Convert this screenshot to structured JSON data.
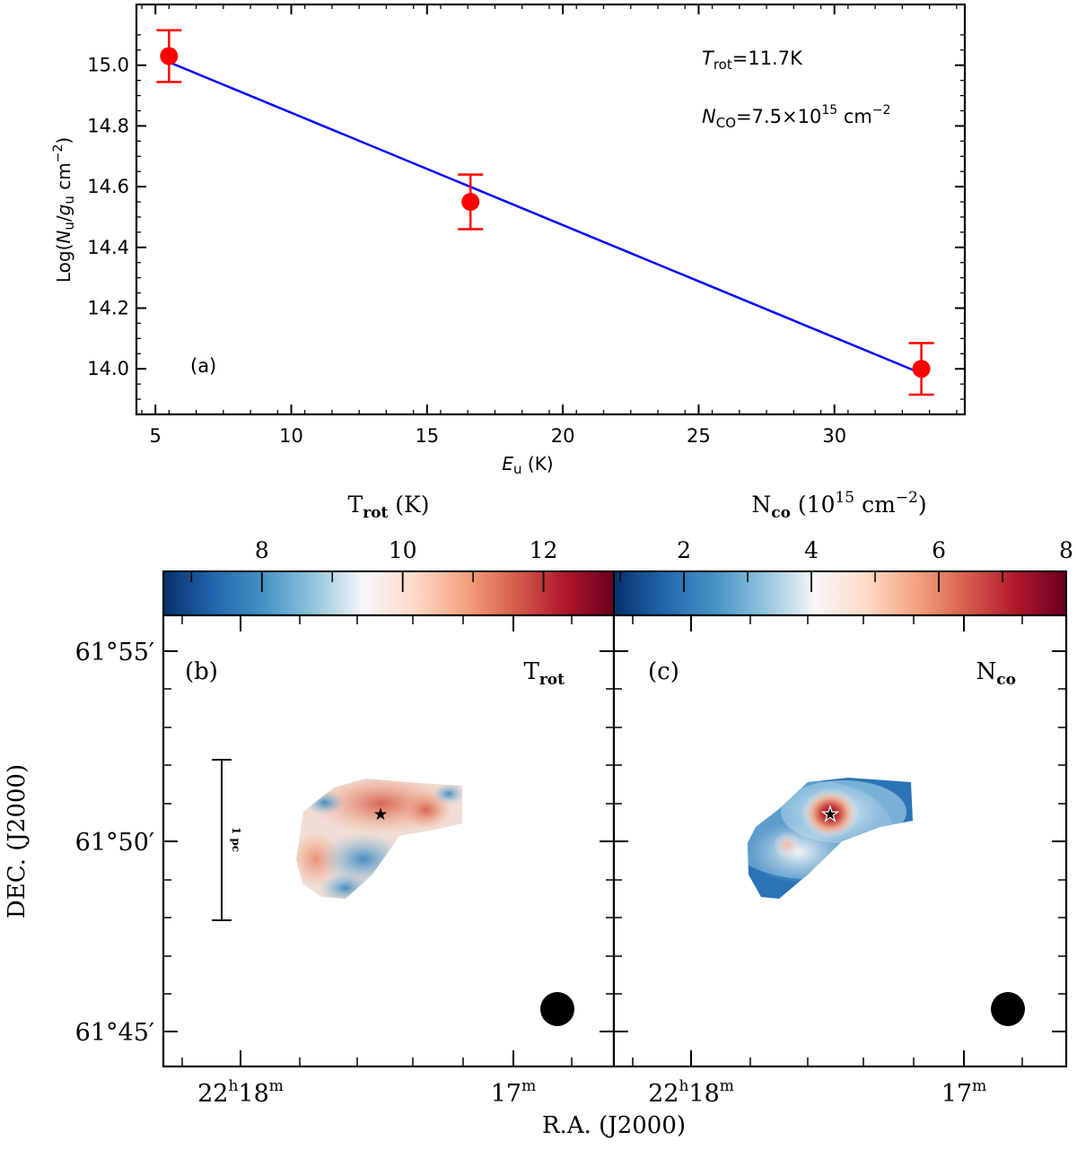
{
  "chart_data": [
    {
      "type": "scatter",
      "panel_label": "(a)",
      "xlabel_main": "E",
      "xlabel_sub": "u",
      "xlabel_unit": " (K)",
      "ylabel_text": "Log(N_u/g_u cm^-2)",
      "xlim": [
        4.3,
        34.8
      ],
      "ylim": [
        13.85,
        15.2
      ],
      "xticks": [
        5,
        10,
        15,
        20,
        25,
        30
      ],
      "yticks": [
        14.0,
        14.2,
        14.4,
        14.6,
        14.8,
        15.0
      ],
      "series": [
        {
          "kind": "points",
          "color": "#ff0000",
          "points": [
            {
              "x": 5.5,
              "y": 15.03,
              "err": 0.085
            },
            {
              "x": 16.6,
              "y": 14.55,
              "err": 0.09
            },
            {
              "x": 33.2,
              "y": 14.0,
              "err": 0.085
            }
          ]
        },
        {
          "kind": "line",
          "color": "#0000ff",
          "x": [
            5.5,
            33.2
          ],
          "y": [
            15.01,
            13.985
          ]
        }
      ],
      "annotations": [
        {
          "sym": "T",
          "sub": "rot",
          "text": "=11.7K"
        },
        {
          "sym": "N",
          "sub": "CO",
          "text": "=7.5×10",
          "sup": "15",
          "tail": " cm",
          "tail_sup": "−2"
        }
      ]
    },
    {
      "type": "heatmap",
      "panel_label": "(b)",
      "corner_label": "rot",
      "colorbar": {
        "label_main": "T",
        "label_sub": "rot",
        "label_unit": " (K)",
        "range": [
          6.6,
          13.0
        ],
        "ticks": [
          8,
          10,
          12
        ],
        "colors": [
          "#08306b",
          "#2166ac",
          "#4393c3",
          "#92c5de",
          "#f7f7f7",
          "#fddbc7",
          "#f4a582",
          "#d6604d",
          "#b2182b",
          "#67001f"
        ]
      },
      "scalebar_label": "1 pc",
      "source_marker": "★",
      "beam": "circle"
    },
    {
      "type": "heatmap",
      "panel_label": "(c)",
      "corner_label": "co",
      "colorbar": {
        "label_main": "N",
        "label_sub": "co",
        "label_unit": " (10",
        "label_sup": "15",
        "label_tail": " cm",
        "label_tail_sup": "−2",
        "label_close": ")",
        "range": [
          0.9,
          8.0
        ],
        "ticks": [
          2,
          4,
          6,
          8
        ],
        "colors": [
          "#08306b",
          "#2166ac",
          "#4393c3",
          "#92c5de",
          "#f7f7f7",
          "#fddbc7",
          "#f4a582",
          "#d6604d",
          "#b2182b",
          "#67001f"
        ]
      },
      "source_marker": "★",
      "beam": "circle"
    }
  ],
  "map_axes": {
    "ylabel": "DEC. (J2000)",
    "xlabel": "R.A. (J2000)",
    "dec_ticks": [
      {
        "deg": "61°",
        "min": "55′"
      },
      {
        "deg": "61°",
        "min": "50′"
      },
      {
        "deg": "61°",
        "min": "45′"
      }
    ],
    "ra_ticks": [
      {
        "h": "22",
        "hs": "h",
        "m": "18",
        "ms": "m"
      },
      {
        "m": "17",
        "ms": "m"
      }
    ]
  }
}
